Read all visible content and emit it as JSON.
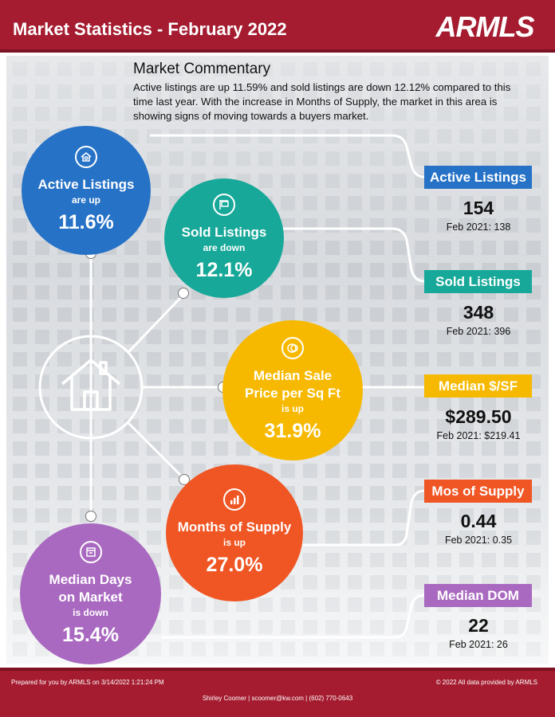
{
  "header": {
    "title": "Market Statistics - February 2022",
    "logo_text": "ARMLS"
  },
  "commentary": {
    "title": "Market Commentary",
    "text": "Active listings are up 11.59% and sold listings are down 12.12% compared to this time last year. With the increase in Months of Supply, the market in this area is showing signs of moving towards a buyers market."
  },
  "bubbles": {
    "active": {
      "title": "Active Listings",
      "direction": "are up",
      "percent": "11.6%",
      "icon": "house-search-icon",
      "color": "#2672c6"
    },
    "sold": {
      "title": "Sold Listings",
      "direction": "are down",
      "percent": "12.1%",
      "icon": "sold-sign-icon",
      "color": "#17a899"
    },
    "price": {
      "title_line1": "Median Sale",
      "title_line2": "Price per Sq Ft",
      "direction": "is up",
      "percent": "31.9%",
      "icon": "money-icon",
      "color": "#f6b900"
    },
    "supply": {
      "title": "Months of Supply",
      "direction": "is up",
      "percent": "27.0%",
      "icon": "bar-chart-icon",
      "color": "#f05624"
    },
    "dom": {
      "title_line1": "Median Days",
      "title_line2": "on Market",
      "direction": "is down",
      "percent": "15.4%",
      "icon": "calendar-icon",
      "color": "#a969c0"
    }
  },
  "stats": {
    "active": {
      "label": "Active Listings",
      "value": "154",
      "previous": "Feb 2021: 138"
    },
    "sold": {
      "label": "Sold Listings",
      "value": "348",
      "previous": "Feb 2021: 396"
    },
    "price": {
      "label": "Median $/SF",
      "value": "$289.50",
      "previous": "Feb 2021: $219.41"
    },
    "supply": {
      "label": "Mos of Supply",
      "value": "0.44",
      "previous": "Feb 2021: 0.35"
    },
    "dom": {
      "label": "Median DOM",
      "value": "22",
      "previous": "Feb 2021: 26"
    }
  },
  "footer": {
    "prepared": "Prepared for you by ARMLS on 3/14/2022 1:21:24 PM",
    "copyright": "© 2022 All data provided by ARMLS",
    "contact": "Shirley Coomer | scoomer@kw.com | (602) 770-0643"
  },
  "colors": {
    "brand_red": "#a51c30",
    "blue": "#2672c6",
    "teal": "#17a899",
    "yellow": "#f6b900",
    "orange": "#f05624",
    "purple": "#a969c0"
  }
}
